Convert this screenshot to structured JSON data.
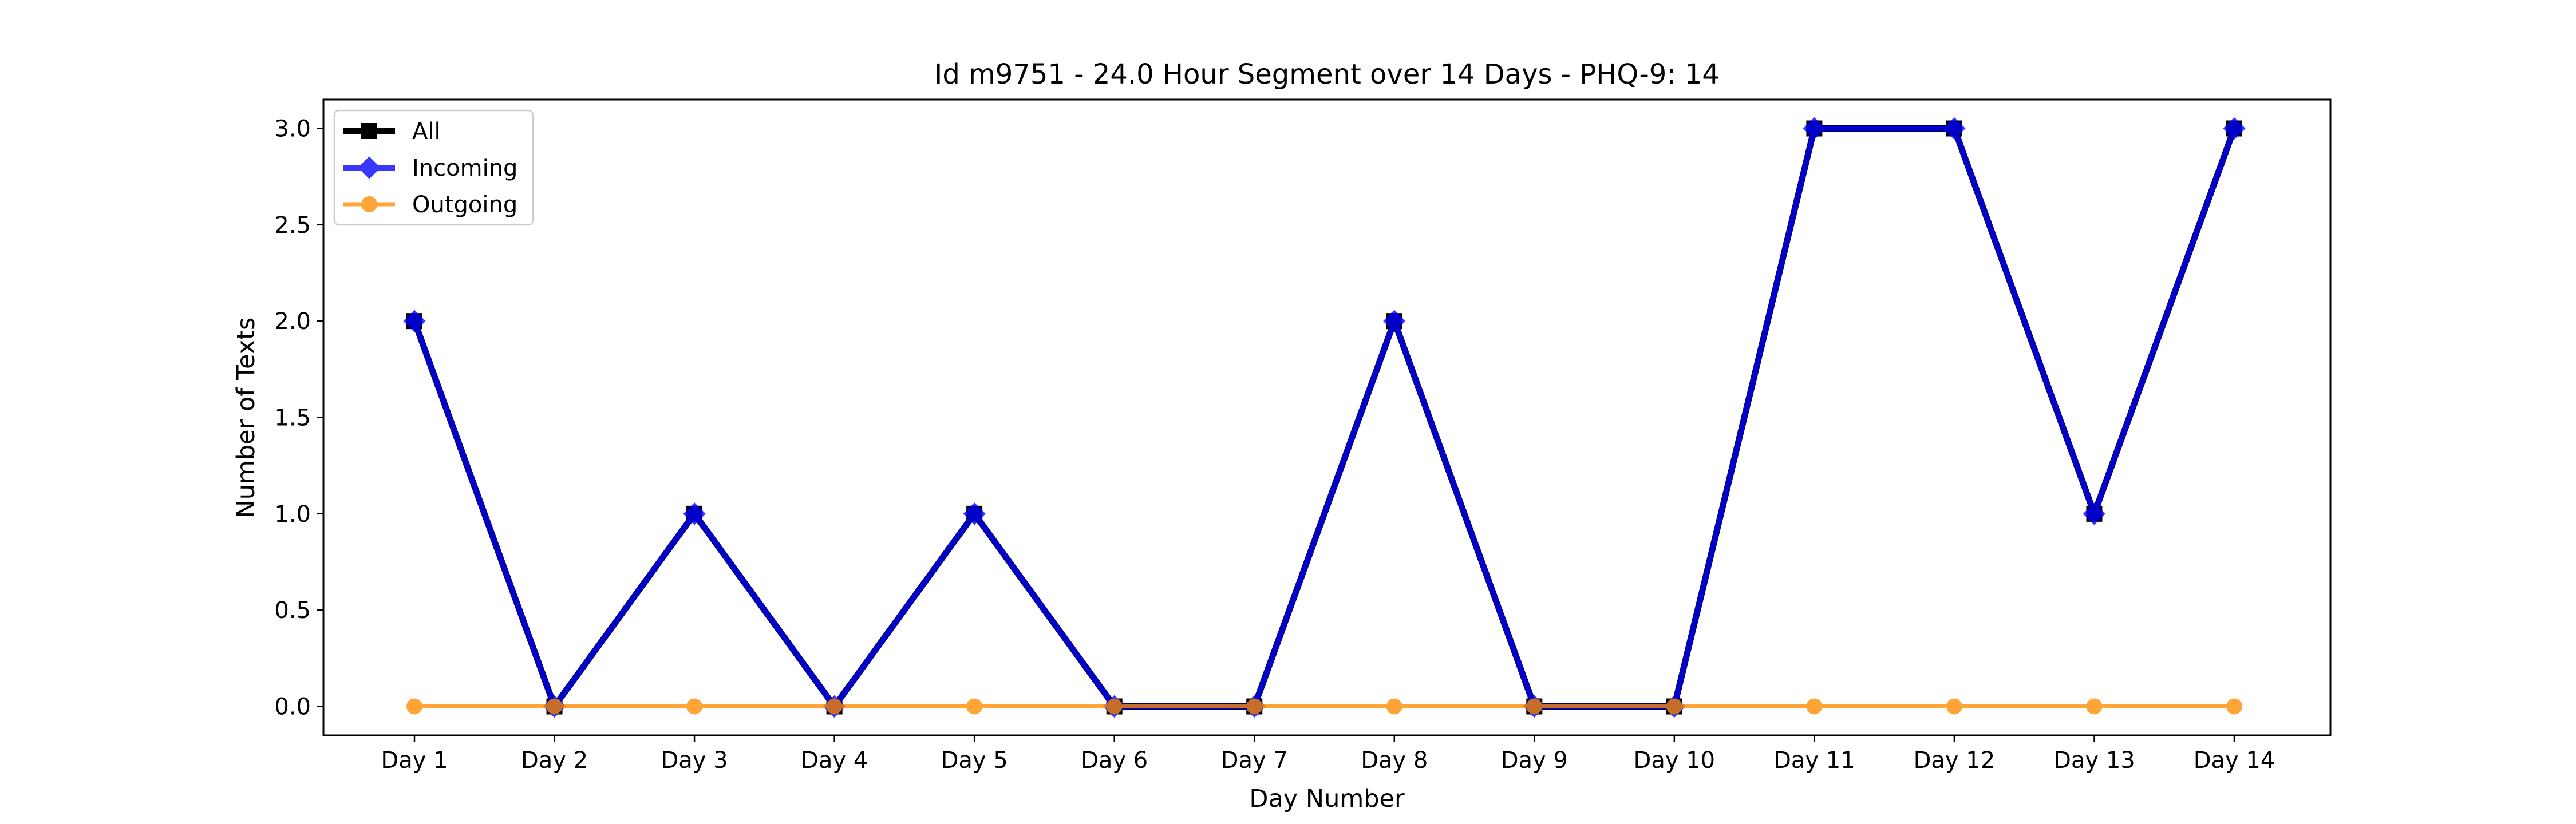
{
  "chart_data": {
    "type": "line",
    "title": "Id m9751 - 24.0 Hour Segment over 14 Days - PHQ-9: 14",
    "xlabel": "Day Number",
    "ylabel": "Number of Texts",
    "categories": [
      "Day 1",
      "Day 2",
      "Day 3",
      "Day 4",
      "Day 5",
      "Day 6",
      "Day 7",
      "Day 8",
      "Day 9",
      "Day 10",
      "Day 11",
      "Day 12",
      "Day 13",
      "Day 14"
    ],
    "ylim": [
      -0.15,
      3.15
    ],
    "yticks": [
      "0.0",
      "0.5",
      "1.0",
      "1.5",
      "2.0",
      "2.5",
      "3.0"
    ],
    "legend_position": "top-left",
    "grid": false,
    "series": [
      {
        "name": "All",
        "color": "#000000",
        "marker": "square",
        "values": [
          2,
          0,
          1,
          0,
          1,
          0,
          0,
          2,
          0,
          0,
          3,
          3,
          1,
          3
        ]
      },
      {
        "name": "Incoming",
        "color": "#0000ff",
        "marker": "diamond",
        "values": [
          2,
          0,
          1,
          0,
          1,
          0,
          0,
          2,
          0,
          0,
          3,
          3,
          1,
          3
        ]
      },
      {
        "name": "Outgoing",
        "color": "#ff8c00",
        "marker": "circle",
        "values": [
          0,
          0,
          0,
          0,
          0,
          0,
          0,
          0,
          0,
          0,
          0,
          0,
          0,
          0
        ]
      }
    ]
  }
}
